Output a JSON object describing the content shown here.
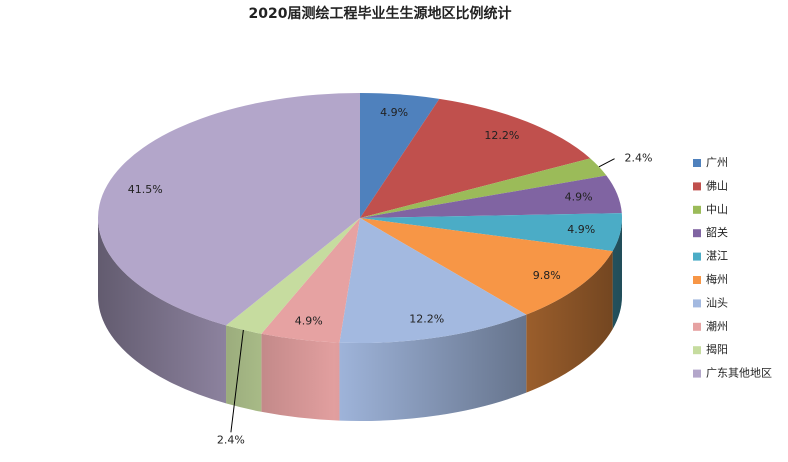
{
  "chart_data": {
    "type": "pie",
    "title": "2020届测绘工程毕业生生源地区比例统计",
    "categories": [
      "广州",
      "佛山",
      "中山",
      "韶关",
      "湛江",
      "梅州",
      "汕头",
      "潮州",
      "揭阳",
      "广东其他地区"
    ],
    "values": [
      4.9,
      12.2,
      2.4,
      4.9,
      4.9,
      9.8,
      12.2,
      4.9,
      2.4,
      41.5
    ],
    "value_labels": [
      "4.9%",
      "12.2%",
      "2.4%",
      "4.9%",
      "4.9%",
      "9.8%",
      "12.2%",
      "4.9%",
      "2.4%",
      "41.5%"
    ],
    "colors": [
      "#4f81bd",
      "#c0504d",
      "#9bbb59",
      "#8064a2",
      "#4bacc6",
      "#f79646",
      "#a3b9e0",
      "#e6a2a2",
      "#c6dc9f",
      "#b3a6ca"
    ],
    "legend": "right"
  }
}
